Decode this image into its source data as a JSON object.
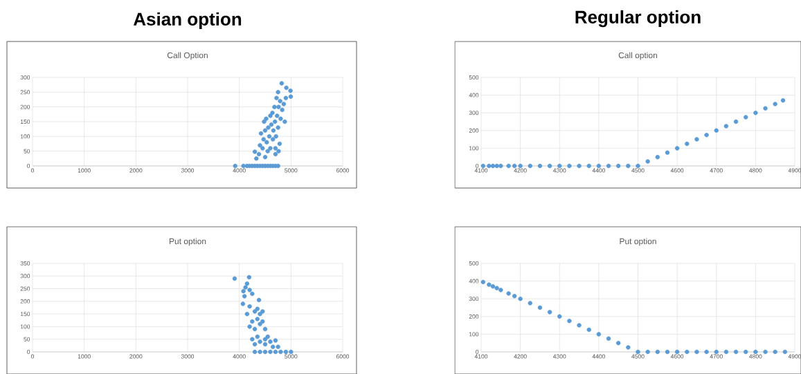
{
  "chart_data": [
    {
      "type": "scatter",
      "title": "Asian option",
      "subtitle": "Call Option",
      "color": "#5b9bd5",
      "marker": "circle",
      "grid": true,
      "xlim": [
        0,
        6000
      ],
      "xticks": [
        0,
        1000,
        2000,
        3000,
        4000,
        5000,
        6000
      ],
      "ylim": [
        0,
        300
      ],
      "yticks": [
        0,
        50,
        100,
        150,
        200,
        250,
        300
      ],
      "x": [
        3920,
        4080,
        4150,
        4200,
        4250,
        4300,
        4350,
        4400,
        4450,
        4500,
        4550,
        4600,
        4650,
        4700,
        4750,
        4300,
        4330,
        4380,
        4400,
        4420,
        4450,
        4470,
        4480,
        4500,
        4500,
        4520,
        4530,
        4550,
        4560,
        4580,
        4600,
        4600,
        4620,
        4640,
        4650,
        4660,
        4680,
        4690,
        4700,
        4710,
        4720,
        4730,
        4750,
        4750,
        4760,
        4820,
        4780,
        4790,
        4800,
        4830,
        4910,
        4860,
        4880,
        4900,
        4990,
        4995,
        4700,
        4760
      ],
      "values": [
        0,
        0,
        0,
        0,
        0,
        0,
        0,
        0,
        0,
        0,
        0,
        0,
        0,
        0,
        0,
        48,
        25,
        40,
        70,
        110,
        60,
        90,
        150,
        30,
        120,
        160,
        80,
        50,
        130,
        100,
        170,
        60,
        140,
        180,
        90,
        120,
        200,
        150,
        60,
        100,
        230,
        170,
        250,
        130,
        200,
        280,
        75,
        220,
        160,
        190,
        265,
        210,
        150,
        230,
        255,
        235,
        40,
        50
      ]
    },
    {
      "type": "scatter",
      "title": "Regular option",
      "subtitle": "Call option",
      "color": "#5b9bd5",
      "marker": "circle",
      "grid": true,
      "xlim": [
        4100,
        4900
      ],
      "xticks": [
        4100,
        4200,
        4300,
        4400,
        4500,
        4600,
        4700,
        4800,
        4900
      ],
      "ylim": [
        0,
        500
      ],
      "yticks": [
        0,
        100,
        200,
        300,
        400,
        500
      ],
      "x": [
        4105,
        4120,
        4130,
        4140,
        4150,
        4170,
        4185,
        4200,
        4225,
        4250,
        4275,
        4300,
        4325,
        4350,
        4375,
        4400,
        4425,
        4450,
        4475,
        4500,
        4525,
        4550,
        4575,
        4600,
        4625,
        4650,
        4675,
        4700,
        4725,
        4750,
        4775,
        4800,
        4825,
        4850,
        4870
      ],
      "values": [
        0,
        0,
        0,
        0,
        0,
        0,
        0,
        0,
        0,
        0,
        0,
        0,
        0,
        0,
        0,
        0,
        0,
        0,
        0,
        0,
        25,
        50,
        75,
        100,
        125,
        150,
        175,
        200,
        225,
        250,
        275,
        300,
        325,
        350,
        370
      ]
    },
    {
      "type": "scatter",
      "subtitle": "Put option",
      "color": "#5b9bd5",
      "marker": "circle",
      "grid": true,
      "xlim": [
        0,
        6000
      ],
      "xticks": [
        0,
        1000,
        2000,
        3000,
        4000,
        5000,
        6000
      ],
      "ylim": [
        0,
        350
      ],
      "yticks": [
        0,
        50,
        100,
        150,
        200,
        250,
        300,
        350
      ],
      "x": [
        3910,
        4190,
        4150,
        4120,
        4080,
        4070,
        4100,
        4200,
        4250,
        4380,
        4150,
        4200,
        4250,
        4300,
        4350,
        4400,
        4450,
        4200,
        4300,
        4350,
        4400,
        4450,
        4500,
        4550,
        4600,
        4650,
        4700,
        4750,
        4300,
        4400,
        4500,
        4300,
        4400,
        4500,
        4600,
        4700,
        4800,
        4900,
        5000,
        4250,
        4350,
        4500
      ],
      "values": [
        290,
        295,
        270,
        255,
        240,
        190,
        220,
        245,
        230,
        205,
        150,
        180,
        120,
        160,
        170,
        150,
        160,
        100,
        90,
        60,
        110,
        120,
        90,
        60,
        40,
        20,
        45,
        20,
        30,
        40,
        30,
        0,
        0,
        0,
        0,
        0,
        0,
        0,
        0,
        50,
        130,
        50
      ]
    },
    {
      "type": "scatter",
      "subtitle": "Put option",
      "color": "#5b9bd5",
      "marker": "circle",
      "grid": true,
      "xlim": [
        4100,
        4900
      ],
      "xticks": [
        4100,
        4200,
        4300,
        4400,
        4500,
        4600,
        4700,
        4800,
        4900
      ],
      "ylim": [
        0,
        500
      ],
      "yticks": [
        0,
        100,
        200,
        300,
        400,
        500
      ],
      "x": [
        4105,
        4120,
        4130,
        4140,
        4150,
        4170,
        4185,
        4200,
        4225,
        4250,
        4275,
        4300,
        4325,
        4350,
        4375,
        4400,
        4425,
        4450,
        4475,
        4500,
        4525,
        4550,
        4575,
        4600,
        4625,
        4650,
        4675,
        4700,
        4725,
        4750,
        4775,
        4800,
        4825,
        4850,
        4875
      ],
      "values": [
        395,
        380,
        370,
        360,
        350,
        330,
        315,
        300,
        275,
        250,
        225,
        200,
        175,
        150,
        125,
        100,
        75,
        50,
        25,
        0,
        0,
        0,
        0,
        0,
        0,
        0,
        0,
        0,
        0,
        0,
        0,
        0,
        0,
        0,
        0
      ]
    }
  ]
}
